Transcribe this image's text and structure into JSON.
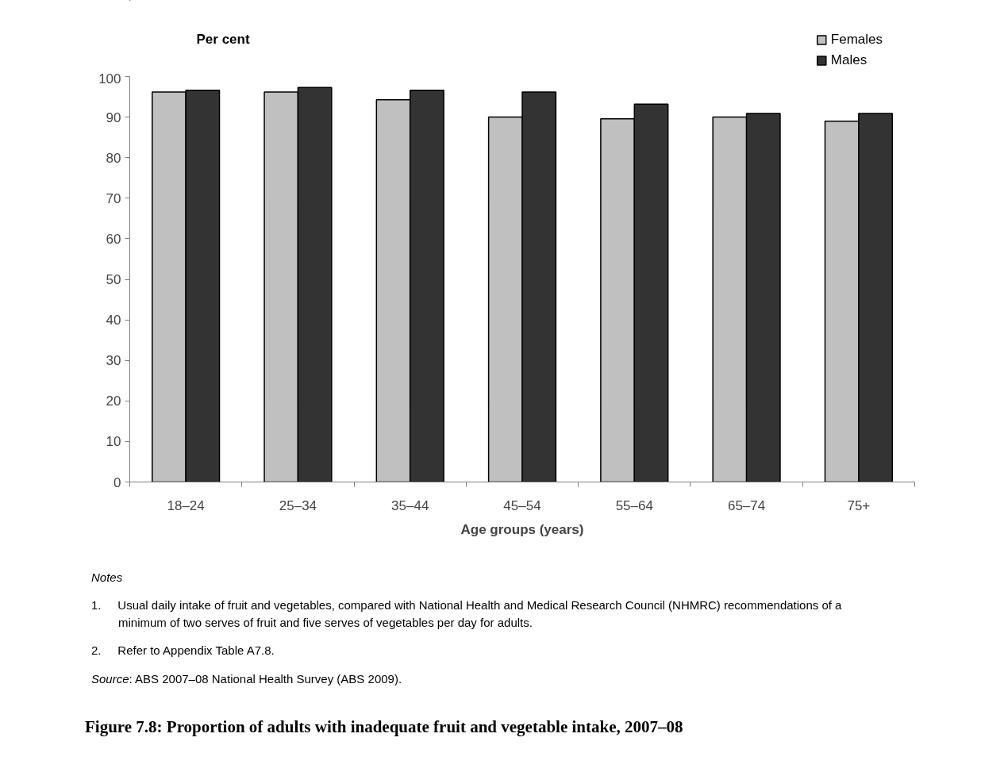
{
  "chart_data": {
    "type": "bar",
    "title": "Figure 7.8: Proportion of adults with inadequate fruit and vegetable intake, 2007–08",
    "ylabel": "Per cent",
    "xlabel": "Age groups (years)",
    "categories": [
      "18–24",
      "25–34",
      "35–44",
      "45–54",
      "55–64",
      "65–74",
      "75+"
    ],
    "series": [
      {
        "name": "Females",
        "color": "#c0c0c0",
        "values": [
          96.2,
          96.2,
          94.3,
          90.0,
          89.6,
          90.0,
          89.0
        ]
      },
      {
        "name": "Males",
        "color": "#333333",
        "values": [
          96.6,
          97.3,
          96.6,
          96.2,
          93.2,
          90.9,
          90.9
        ]
      }
    ],
    "ylim": [
      0,
      100
    ],
    "yticks": [
      0,
      10,
      20,
      30,
      40,
      50,
      60,
      70,
      80,
      90,
      100
    ],
    "grid": false,
    "legend": "top right",
    "annotations": [
      "Notes",
      "1.     Usual daily intake of fruit and vegetables, compared with National Health and Medical Research Council (NHMRC) recommendations of a minimum of two serves of fruit and five serves of vegetables per day for adults.",
      "2.     Refer to Appendix Table A7.8.",
      "Source: ABS 2007–08 National Health Survey (ABS 2009)."
    ]
  }
}
